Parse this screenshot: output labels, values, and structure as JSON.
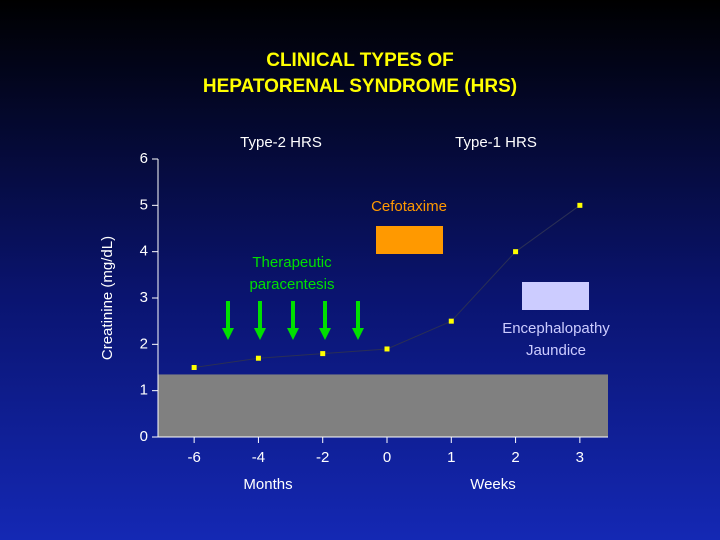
{
  "chart_data": {
    "type": "line",
    "title": [
      "CLINICAL TYPES OF",
      "HEPATORENAL SYNDROME (HRS)"
    ],
    "y_label": "Creatinine (mg/dL)",
    "categories": [
      "-6",
      "-4",
      "-2",
      "0",
      "1",
      "2",
      "3"
    ],
    "x_group_labels": [
      "Months",
      "Weeks"
    ],
    "phase_labels": [
      "Type-2 HRS",
      "Type-1 HRS"
    ],
    "series": [
      {
        "name": "Creatinine",
        "color": "#ffff00",
        "values": [
          1.5,
          1.7,
          1.8,
          1.9,
          2.5,
          4.0,
          5.0
        ]
      }
    ],
    "shaded_band": {
      "ylim": [
        0,
        1.35
      ],
      "color": "#808080"
    },
    "ylim": [
      0,
      6
    ],
    "yticks": [
      0,
      1,
      2,
      3,
      4,
      5,
      6
    ],
    "annotations": {
      "cefotaxime": "Cefotaxime",
      "paracentesis": [
        "Therapeutic",
        "paracentesis"
      ],
      "complications": [
        "Encephalopathy",
        "Jaundice"
      ]
    }
  }
}
